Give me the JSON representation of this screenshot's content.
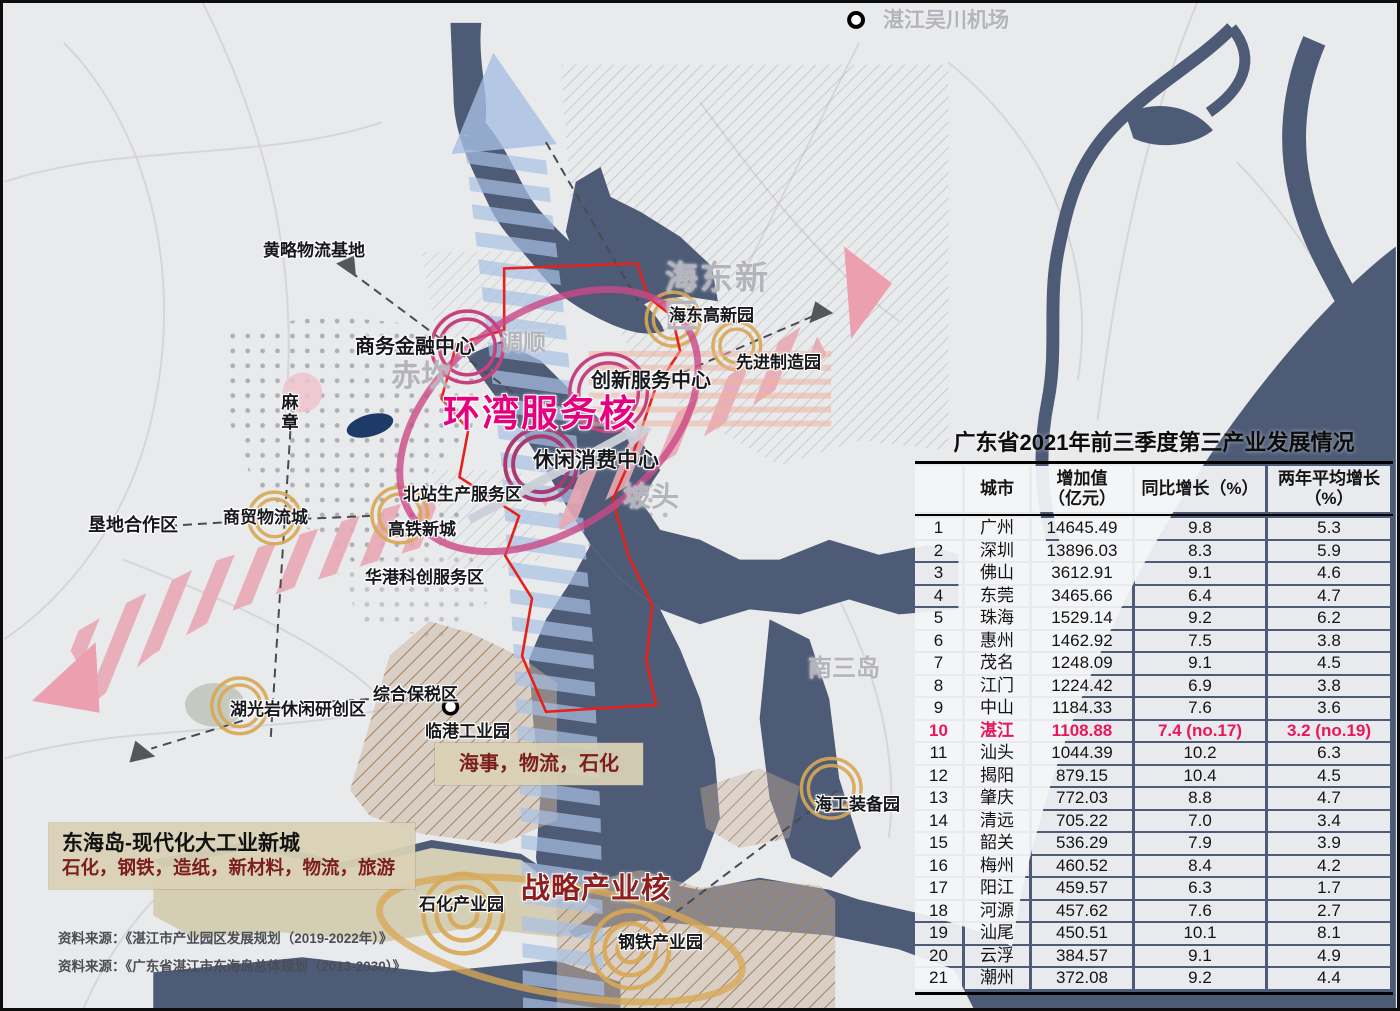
{
  "map": {
    "airport_label": "湛江吴川机场",
    "regions": {
      "haidong_new_area": "海东新区",
      "chikan": "赤坎",
      "diaoshun": "调顺",
      "potou": "坡头",
      "nansandao": "南三岛",
      "mazhang": "麻章"
    },
    "centers": {
      "ring_title": "环湾服务核",
      "business_finance": "商务金融中心",
      "innovation_service": "创新服务中心",
      "leisure_consumption": "休闲消费中心"
    },
    "parks": {
      "huanglue_logistics": "黄略物流基地",
      "haidong_hitech": "海东高新园",
      "advanced_manufacturing": "先进制造园",
      "north_station_service": "北站生产服务区",
      "hsr_new_town": "高铁新城",
      "trade_logistics_city": "商贸物流城",
      "kendi_cooperation": "垦地合作区",
      "huagang_scitech": "华港科创服务区",
      "huguangyan_leisure": "湖光岩休闲研创区",
      "comprehensive_bonded": "综合保税区",
      "lingang_industrial": "临港工业园",
      "marine_equipment": "海工装备园",
      "petrochemical": "石化产业园",
      "steel": "钢铁产业园"
    },
    "strategy_core": "战略产业核",
    "lingang_industries": "海事，物流，石化",
    "donghai_box": {
      "title": "东海岛-现代化大工业新城",
      "industries": "石化，钢铁，造纸，新材料，物流，旅游"
    },
    "sources": [
      "资料来源：《湛江市产业园区发展规划（2019-2022年）》",
      "资料来源：《广东省湛江市东海岛总体规划（2013-2030）》"
    ]
  },
  "table": {
    "title": "广东省2021年前三季度第三产业发展情况",
    "headers": [
      "",
      "城市",
      "增加值\n（亿元）",
      "同比增长（%）",
      "两年平均增长\n（%）"
    ],
    "highlight_rank": "10",
    "rows": [
      {
        "rank": "1",
        "city": "广州",
        "value": "14645.49",
        "yoy": "9.8",
        "avg2": "5.3"
      },
      {
        "rank": "2",
        "city": "深圳",
        "value": "13896.03",
        "yoy": "8.3",
        "avg2": "5.9"
      },
      {
        "rank": "3",
        "city": "佛山",
        "value": "3612.91",
        "yoy": "9.1",
        "avg2": "4.6"
      },
      {
        "rank": "4",
        "city": "东莞",
        "value": "3465.66",
        "yoy": "6.4",
        "avg2": "4.7"
      },
      {
        "rank": "5",
        "city": "珠海",
        "value": "1529.14",
        "yoy": "9.2",
        "avg2": "6.2"
      },
      {
        "rank": "6",
        "city": "惠州",
        "value": "1462.92",
        "yoy": "7.5",
        "avg2": "3.8"
      },
      {
        "rank": "7",
        "city": "茂名",
        "value": "1248.09",
        "yoy": "9.1",
        "avg2": "4.5"
      },
      {
        "rank": "8",
        "city": "江门",
        "value": "1224.42",
        "yoy": "6.9",
        "avg2": "3.8"
      },
      {
        "rank": "9",
        "city": "中山",
        "value": "1184.33",
        "yoy": "7.6",
        "avg2": "3.6"
      },
      {
        "rank": "10",
        "city": "湛江",
        "value": "1108.88",
        "yoy": "7.4 (no.17)",
        "avg2": "3.2  (no.19)"
      },
      {
        "rank": "11",
        "city": "汕头",
        "value": "1044.39",
        "yoy": "10.2",
        "avg2": "6.3"
      },
      {
        "rank": "12",
        "city": "揭阳",
        "value": "879.15",
        "yoy": "10.4",
        "avg2": "4.5"
      },
      {
        "rank": "13",
        "city": "肇庆",
        "value": "772.03",
        "yoy": "8.8",
        "avg2": "4.7"
      },
      {
        "rank": "14",
        "city": "清远",
        "value": "705.22",
        "yoy": "7.0",
        "avg2": "3.4"
      },
      {
        "rank": "15",
        "city": "韶关",
        "value": "536.29",
        "yoy": "7.9",
        "avg2": "3.9"
      },
      {
        "rank": "16",
        "city": "梅州",
        "value": "460.52",
        "yoy": "8.4",
        "avg2": "4.2"
      },
      {
        "rank": "17",
        "city": "阳江",
        "value": "459.57",
        "yoy": "6.3",
        "avg2": "1.7"
      },
      {
        "rank": "18",
        "city": "河源",
        "value": "457.62",
        "yoy": "7.6",
        "avg2": "2.7"
      },
      {
        "rank": "19",
        "city": "汕尾",
        "value": "450.51",
        "yoy": "10.1",
        "avg2": "8.1"
      },
      {
        "rank": "20",
        "city": "云浮",
        "value": "384.57",
        "yoy": "9.1",
        "avg2": "4.9"
      },
      {
        "rank": "21",
        "city": "潮州",
        "value": "372.08",
        "yoy": "9.2",
        "avg2": "4.4"
      }
    ]
  },
  "colors": {
    "water": "#4d5b77",
    "land": "#e9eaec",
    "highlight_pink": "#e8175d",
    "magenta_core": "#e4007f",
    "corridor_blue": "#a6bee2",
    "corridor_pink": "#e8a8b4",
    "park_ring_orange": "#d8a855",
    "boundary_red": "#e8201a",
    "industry_tan": "#c9b49d",
    "dark_red_text": "#8d1f1f"
  }
}
